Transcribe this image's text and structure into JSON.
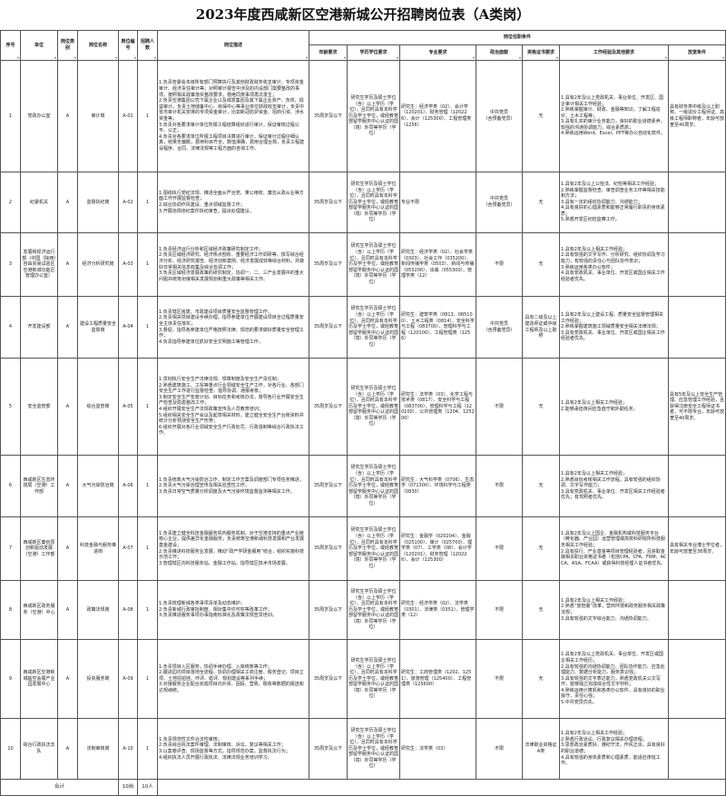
{
  "title": "2023年度西咸新区空港新城公开招聘岗位表（A类岗）",
  "headers": {
    "no": "序号",
    "unit": "单位",
    "category": "岗位类别",
    "post": "岗位名称",
    "code": "岗位编号",
    "count": "招聘人数",
    "desc": "岗位描述",
    "conditions": "岗位任职条件",
    "age": "年龄要求",
    "edu": "学历学位要求",
    "major": "专业要求",
    "political": "政治面貌",
    "cert": "资格证书要求",
    "experience": "工作经验及其他要求",
    "relax": "放宽条件"
  },
  "rows": [
    {
      "no": "1",
      "unit": "党政办公室",
      "category": "A",
      "post": "审计岗",
      "code": "A-01",
      "count": "1",
      "desc": "1.负责管委会本级所有部门预算执行及其他财政财务收支审计、专项资金审计、经济责任审计等；对照审计报告中涉及的内设部门需要整改的事项，按照相关政策落实整改要求，根绝同类事项再次发生；\n2.负责空港集团公司下属企业以及城发集团及其下属企业资产、负债、损益审计，负责土地储备中心、房保中心等事业单位财政收支审计，负责中省市审计机关安排的专项资金审计，比如新冠防护资金、招商引资、涉水资金等；\n3.负责对各要求审计单位所报工程结算组织进行审计，保证审核过程公平、公正；\n4.负责对各要求单位所报工程项目决算进行审计，保证审计过程仔细认真，结果无偏颇，费用科目齐全，数值准确，费用合理合规，负责工程建设程序、合同、法律法规等工程方面的咨询工作。",
      "age": "35周岁及以下",
      "edu": "研究生学历及硕士学位（含）以上学历（学位），且同时具有本科学历及学士学位，或经教育部留学服务中心认证的国（境）外同等学历（学位）",
      "major": "研究生：经济学类（02）、会计学（120201）、财务管理（120226）、会计（125300）、工程管理类（1256）",
      "political": "中共党员\n（含预备党员）",
      "cert": "无",
      "experience": "1.具有2年及以上党政机关、事业单位、开发区、国企审计相关工作经验；\n2.熟练掌握审计、财政、金融等知识，了解工程造价、土木工程等；\n3.具有扎实的审计业务能力，良好的职业道德素养，较强的沟通协调能力，综合素质高；\n4.熟练运用Word、Excel、PPT等办公自动化软件。",
      "relax": "具有财务类中级及以上职称、一级造价工程师证、高级工程师职称者，年龄可放宽至40周岁。",
      "h": 123
    },
    {
      "no": "2",
      "unit": "纪委机关",
      "category": "A",
      "post": "监督执纪岗",
      "code": "A-02",
      "count": "1",
      "desc": "1.围绕执行党纪法规、推进全面从严治党、秉公用权、廉洁从政从业等方面工作开展监督检查；\n2.综合协调作风建设、重点领域监督工作；\n3.开展违规违纪案件执纪审查，提出处理建议。",
      "age": "35周岁及以下",
      "edu": "研究生学历及硕士学位（含）以上学历（学位），且同时具有本科学历及学士学位，或经教育部留学服务中心认证的国（境）外同等学历（学位）",
      "major": "专业不限",
      "political": "中共党员\n（含预备党员）",
      "cert": "无",
      "experience": "1.具有2年及以上公检法、纪检等相关工作经验；\n2.熟练掌握监督检查、审查调查业务工作等相关技能和方法；\n3.具有一定的组织协调能力、沟通能力；\n4.具有良好的心理素质和能够正常履行职责的身体素质；\n5.熟悉开发区纪检监察工作。",
      "relax": "",
      "h": 67
    },
    {
      "no": "3",
      "unit": "发展和经济运行部（中国（陕西）自由贸易试验区空港新城功能区管理办公室）",
      "category": "A",
      "post": "经济分析研究岗",
      "code": "A-03",
      "count": "1",
      "desc": "1.负责经济运行分析和区域经济政策研究制定工作；\n2.负责区域经济研究、经济热点剖析、重要经济工作调研等，撰写综合经济分析、经济研究报告、经济创新案例、经济发展成效等综合材料，并做好日常相关信息收集及综合协调工作；\n3.负责区域经济发展政策的研究制定，协调一、二、三产业发展中的重大问题并统筹衔接相关发展规划和重大政策等相关工作。",
      "age": "35周岁及以下",
      "edu": "研究生学历及硕士学位（含）以上学历（学位），且同时具有本科学历及学士学位，或经教育部留学服务中心认证的国（境）外同等学历（学位）",
      "major": "研究生：经济学类（02）、社会学类（0303）、社会工作（035200）、新闻传播学类（0503）、新闻与传播（055200）、出版（055300）、管理学类（12）",
      "political": "不限",
      "cert": "无",
      "experience": "1.具有2年及以上相关工作经验；\n2.具有较强的文字写作、分析研究、组织协调及学习能力，有较强的责任心与团队协作意识；\n3.熟练运用各类办公软件；\n4.具有党政机关、事业单位、开发区或国企相关工作经验者优先。",
      "relax": "",
      "h": 70
    },
    {
      "no": "4",
      "unit": "开发建设部",
      "category": "A",
      "post": "建设工程质量安全监督岗",
      "code": "A-04",
      "count": "1",
      "desc": "1.负责辖区房建、市政建设项目质量安全监督管理工作；\n2.负责相关项目建设手续办理，指导参建单位开展建设项目全过程质量安全主体责任落实；\n3.督促、指导各参建单位严格按照法律、规范的要求做好质量安全管理工作；\n4.负责指导参建单位抓好安全文明施工等管理工作。",
      "age": "35周岁及以下",
      "edu": "研究生学历及硕士学位（含）以上学历（学位），且同时具有本科学历及学士学位，或经教育部留学服务中心认证的国（境）外同等学历（学位）",
      "major": "研究生：建筑学类（0813、085100）、土木工程类（0814）、安全科学与工程（083700）、管理科学与工程（120100）、工程管理类（1256）",
      "political": "中共党员\n（含预备党员）",
      "cert": "具有二级及以上建造师证或中级工程师及以上职称",
      "experience": "1.具有2年及以上建设工程、质量安全监督管理相关工作经验；\n2.熟练掌握建筑施工领域质量安全相关法律法规；\n3.具有党政机关、事业单位、开发区或国企相关工作经验者优先。",
      "relax": "",
      "h": 68
    },
    {
      "no": "5",
      "unit": "安全监管部",
      "category": "A",
      "post": "综合监管岗",
      "code": "A-05",
      "count": "1",
      "desc": "1.贯彻执行安全生产法律法规、规章制度及安全生产责任制；\n2.熟悉建筑施工、工贸等重点行业领域安全生产工作，对各行业、各部门安全生产工作进行监督检查、指导协调、通报考核；\n3.制定安全生产年度计划、目标任务和考核办法，督导各行业开展安全生产检查及隐患整改工作；\n4.组织开展安全生产法规政策宣传及人员教育培训；\n5.组织相关安全生产会议及起草相关材料，建立健全安全生产台账资料并统计分析预测安全生产形势；\n6.组织开展对各行业领域安全生产行政处罚、行政强制等综合行政执法工作。",
      "age": "35周岁及以下",
      "edu": "研究生学历及硕士学位（含）以上学历（学位），且同时具有本科学历及学士学位，或经教育部留学服务中心认证的国（境）外同等学历（学位）",
      "major": "研究生：法学类（03）、化学工程与技术类（0817）、安全科学与工程（083700）、管理科学与工程（120100）、公共管理类（1204、125200）",
      "political": "不限",
      "cert": "无",
      "experience": "1.具有2年及以上相关工作经验；\n2.能够承担夜间应急值守和外勤任务。",
      "relax": "具有5年及以上安全生产管理、应急管理工作经验，且获得注册安全工程师证书者，可不限专业，年龄可放宽至40周岁。",
      "h": 107
    },
    {
      "no": "6",
      "unit": "西咸新区生态环境局（空港）工作部",
      "category": "A",
      "post": "大气污染防治岗",
      "code": "A-06",
      "count": "1",
      "desc": "1.负责统筹大气污染防治工作，制定工作方案及调度部门专项任务推进；\n2.负责大气污染治理宣传及相关巡查性工作；\n3.负责日常空气质量分析调度及大气污染环境监督监测等相关工作。",
      "age": "35周岁及以下",
      "edu": "研究生学历及硕士学位（含）以上学历（学位），且同时具有本科学历及学士学位，或经教育部留学服务中心认证的国（境）外同等学历（学位）",
      "major": "研究生：大气科学类（0706）、生态学（071300）、环境科学与工程类（0830）",
      "political": "不限",
      "cert": "无",
      "experience": "1.具有2年及以上相关工作经验；\n2.熟悉目标考核相关工作流程，具有较强的组织协调、文字写作能力；\n3.具有党政机关、事业单位、开发区相关工作经验者优先；有驾照者优先。",
      "relax": "",
      "h": 68
    },
    {
      "no": "7",
      "unit": "西咸新区秦创原创新驱动发展（空港）工作部",
      "category": "A",
      "post": "科技金融与服务推进岗",
      "code": "A-07",
      "count": "1",
      "desc": "1.负责建立健全科技金融服务机构服务机制，对于空港支持的重点产业链核心企业，提供差异化金融服务；负责统筹空港新城科技发展和产业发展基金建设；\n2.负责推进科技服务业发展，推动“政产学研金服用”结合，组织实施科技示范工作；\n3.管理辖区内科技服务站、金融工作站，指导辖区技术市场发展。",
      "age": "35周岁及以下",
      "edu": "研究生学历及硕士学位（含）以上学历（学位），且同时具有本科学历及学士学位，或经教育部留学服务中心认证的国（境）外同等学历（学位）",
      "major": "研究生：金融学（020204）、金融（025100）、审计（025700）、理学类（07）、工学类（08）、会计学（120201）、财务管理（120226）、会计（125300）",
      "political": "不限",
      "cert": "无",
      "experience": "1.具有2年及以上国企、金融机构或科技服务平台（孵化器、产业园）运营管理或高校科研院所科技服务相关工作经验；\n2.具有投行、产业基金等项目管理经验者，且获取金融相关职业资格证书者（包括CPA、CFA、FRM、ACCA、ASA、FCAA）或获得科技经理人证书者优先。",
      "relax": "具有相关专业博士学位者，年龄可放宽至38周岁。",
      "h": 70
    },
    {
      "no": "8",
      "unit": "西咸新区政务服务（空港）中心",
      "category": "A",
      "post": "政策法规岗",
      "code": "A-08",
      "count": "1",
      "desc": "1.负责梳理新城各类事项清单及动态维护；\n2.负责新城行政审批制度、相对集中许可权等改革工作；\n3.负责推进服务事项办事指南标准化及政策法规宣贯培训。",
      "age": "35周岁及以下",
      "edu": "研究生学历及硕士学位（含）以上学历（学位），且同时具有本科学历及学士学位，或经教育部留学服务中心认证的国（境）外同等学历（学位）",
      "major": "研究生：经济学类（02）、法学类（0301）、法律类（0351）、管理学类（12）",
      "political": "不限",
      "cert": "无",
      "experience": "1.具有2年及以上相关工作经验；\n2.熟悉“放管服”改革，营商环境和政务服务相关政策法规；\n3.具有较强的文字综合能力、沟通协调能力。",
      "relax": "",
      "h": 65
    },
    {
      "no": "9",
      "unit": "西咸新区空港新城临空会展产业园发展中心",
      "category": "A",
      "post": "投资服务岗",
      "code": "A-09",
      "count": "1",
      "desc": "1.负责项目入区服务，协调手续办理、入库统筹等工作；\n2.跟进园内项目落地全流程，协调办理相关工商注册、税务登记、项目立项、土地招拍挂、环评、稳评、规划建设等系列手续；\n3.对接服务企业配合完成项目内外资、固投、营收、税收等数据的报送和达规纳统。",
      "age": "35周岁及以下",
      "edu": "研究生学历及硕士学位（含）以上学历（学位），且同时具有本科学历及学士学位，或经教育部留学服务中心认证的国（境）外同等学历（学位）",
      "major": "研究生：工商管理类（1202、1251）、旅游管理（125400）、工程管理类（125600）",
      "political": "不限",
      "cert": "无",
      "experience": "1.具有2年及以上党政机关、事业单位、开发区或国企相关工作经历；\n2.具有较强的沟通协调能力、团队协作能力、应急处理能力、数据分析能力，服务意识强；\n3.具有较强的文字表达能力，熟悉党政机关公文写作，能够独立完成综合性文字材料；\n4.熟练运用计算机和各类办公软件，具有良好的职业操守，责任心强；\n5.中共党员优先。",
      "relax": "",
      "h": 87
    },
    {
      "no": "10",
      "unit": "综合行政执法支队",
      "category": "A",
      "post": "法制审核岗",
      "code": "A-10",
      "count": "1",
      "desc": "1.负责规范性文件合法性审核；\n2.负责综合执法案件审理、法制审核、诉讼、复议等相关工作；\n3.以案卷评查、现场监督等方式，指导规范办案，监督执法行为；\n4.组织执法人员开展行政执法、法律法规业务培训学习。",
      "age": "35周岁及以下",
      "edu": "研究生学历及硕士学位（含）以上学历（学位），且同时具有本科学历及学士学位，或经教育部留学服务中心认证的国（境）外同等学历（学位）",
      "major": "研究生：法学类（03）",
      "political": "不限",
      "cert": "法律职业资格证A类",
      "experience": "1.具有2年及以上相关工作经验；\n2.熟悉行政诉讼、行政复议相关办理流程；\n3.思想政治素质好，遵纪守法，作风正派，具有良好的职业道德；\n4.具有较强的身体素质和心理素质，能适应夜班工作。",
      "relax": "",
      "h": 67
    }
  ],
  "total": {
    "label": "合计",
    "posts": "10岗",
    "people": "10人"
  },
  "colors": {
    "border": "#555555",
    "filter_arrow": "#2a8a3a"
  }
}
